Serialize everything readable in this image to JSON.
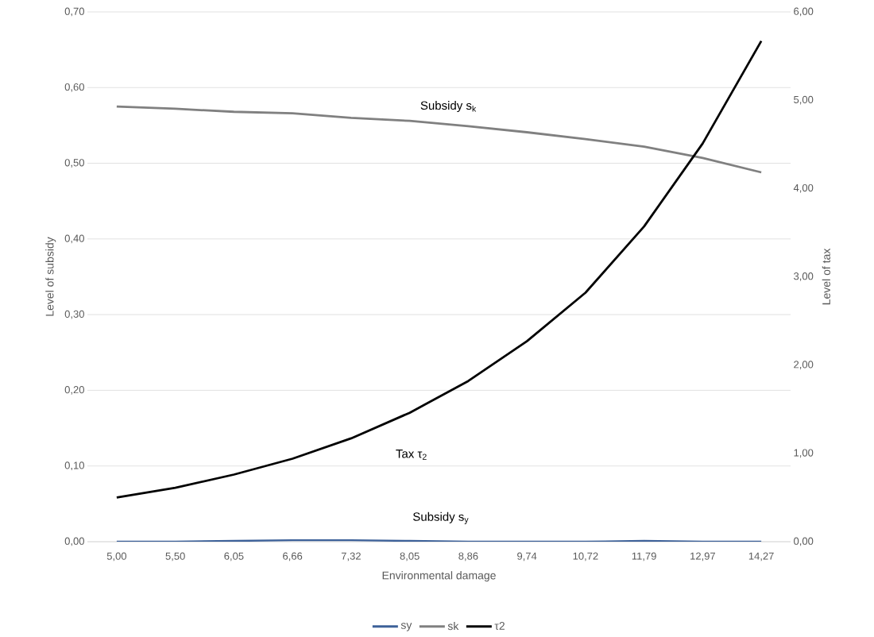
{
  "chart_data": {
    "type": "line",
    "xlabel": "Environmental damage",
    "ylabel": "Level of subsidy",
    "y2label": "Level of tax",
    "categories": [
      "5,00",
      "5,50",
      "6,05",
      "6,66",
      "7,32",
      "8,05",
      "8,86",
      "9,74",
      "10,72",
      "11,79",
      "12,97",
      "14,27"
    ],
    "series": [
      {
        "name": "sy",
        "color": "#3d6199",
        "values": [
          0,
          0,
          0.001,
          0.002,
          0.002,
          0.001,
          0,
          0,
          0,
          0.001,
          0,
          0
        ]
      },
      {
        "name": "sk",
        "color": "#808080",
        "values": [
          0.575,
          0.572,
          0.568,
          0.566,
          0.56,
          0.556,
          0.549,
          0.541,
          0.532,
          0.522,
          0.507,
          0.488
        ]
      },
      {
        "name": "τ2",
        "color": "#000000",
        "axis": "y2",
        "values": [
          0.5,
          0.61,
          0.76,
          0.94,
          1.17,
          1.46,
          1.82,
          2.27,
          2.82,
          3.57,
          4.51,
          5.67
        ]
      }
    ],
    "ylim": [
      0,
      0.7
    ],
    "yticks": [
      {
        "value": 0,
        "label": "0,00"
      },
      {
        "value": 0.1,
        "label": "0,10"
      },
      {
        "value": 0.2,
        "label": "0,20"
      },
      {
        "value": 0.3,
        "label": "0,30"
      },
      {
        "value": 0.4,
        "label": "0,40"
      },
      {
        "value": 0.5,
        "label": "0,50"
      },
      {
        "value": 0.6,
        "label": "0,60"
      },
      {
        "value": 0.7,
        "label": "0,70"
      }
    ],
    "y2lim": [
      0,
      6
    ],
    "y2ticks": [
      {
        "value": 0,
        "label": "0,00"
      },
      {
        "value": 1,
        "label": "1,00"
      },
      {
        "value": 2,
        "label": "2,00"
      },
      {
        "value": 3,
        "label": "3,00"
      },
      {
        "value": 4,
        "label": "4,00"
      },
      {
        "value": 5,
        "label": "5,00"
      },
      {
        "value": 6,
        "label": "6,00"
      }
    ],
    "annotations": [
      "Subsidy s$_{k}$",
      "Tax τ$_{2}$",
      "Subsidy s$_{y}$"
    ],
    "grid": "y",
    "legend": "bottom",
    "marker": "none",
    "line_style": "solid"
  }
}
